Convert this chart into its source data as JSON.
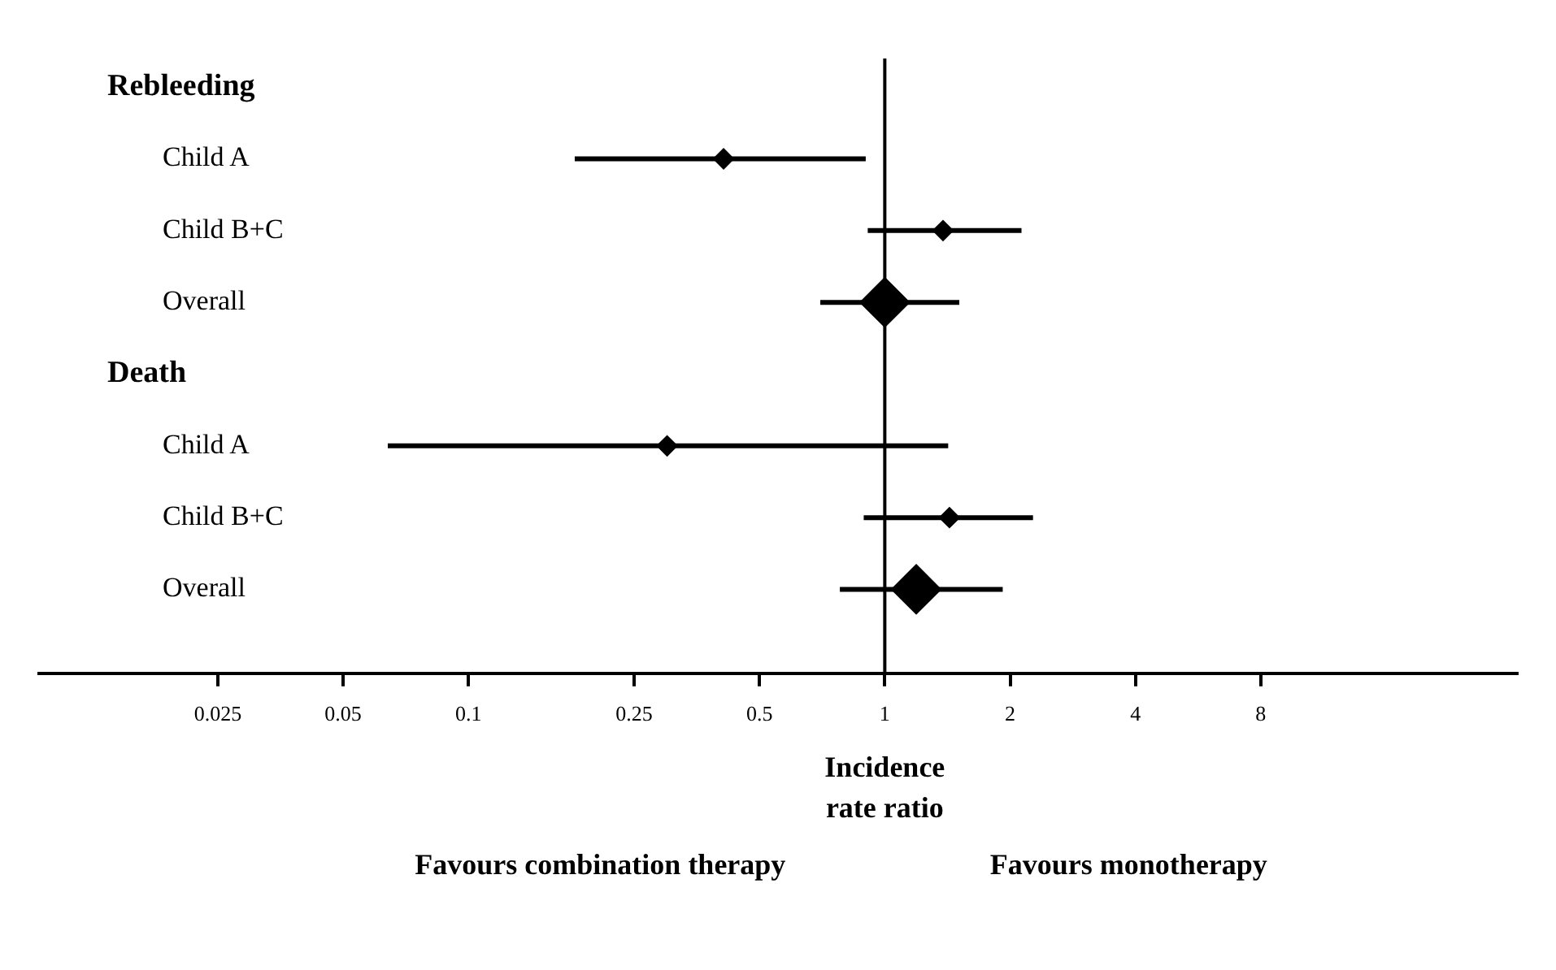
{
  "chart_data": {
    "type": "scatter",
    "orientation": "horizontal",
    "xlabel": "Incidence rate ratio",
    "categories": [
      "Rebleeding",
      "Child A",
      "Child B+C",
      "Overall",
      "Death",
      "Child A",
      "Child B+C",
      "Overall"
    ],
    "log": "x",
    "xlim": [
      0.0093,
      33
    ],
    "xticks": [
      0.025,
      0.05,
      0.1,
      0.25,
      0.5,
      1,
      2,
      4,
      8
    ],
    "grid": false,
    "legend": false,
    "series": [
      {
        "color": "#000000",
        "marker": "diamond",
        "line_style": "solid",
        "values": [
          null,
          0.41,
          1.38,
          null,
          null,
          0.3,
          1.43,
          null
        ],
        "errors": [
          null,
          [
            0.18,
            0.9
          ],
          [
            0.91,
            2.13
          ],
          null,
          null,
          [
            0.064,
            1.42
          ],
          [
            0.89,
            2.27
          ],
          null
        ]
      },
      {
        "color": "#000000",
        "marker": "diamond",
        "values": [
          null,
          null,
          null,
          1.0,
          null,
          null,
          null,
          1.19
        ],
        "errors": [
          null,
          null,
          null,
          [
            0.7,
            1.51
          ],
          null,
          null,
          null,
          [
            0.78,
            1.92
          ]
        ]
      }
    ],
    "ref_lines": [
      {
        "axis": "x",
        "value": 1,
        "color": "#000000"
      }
    ],
    "annotations": [
      "Favours combination therapy",
      "Favours monotherapy"
    ]
  }
}
